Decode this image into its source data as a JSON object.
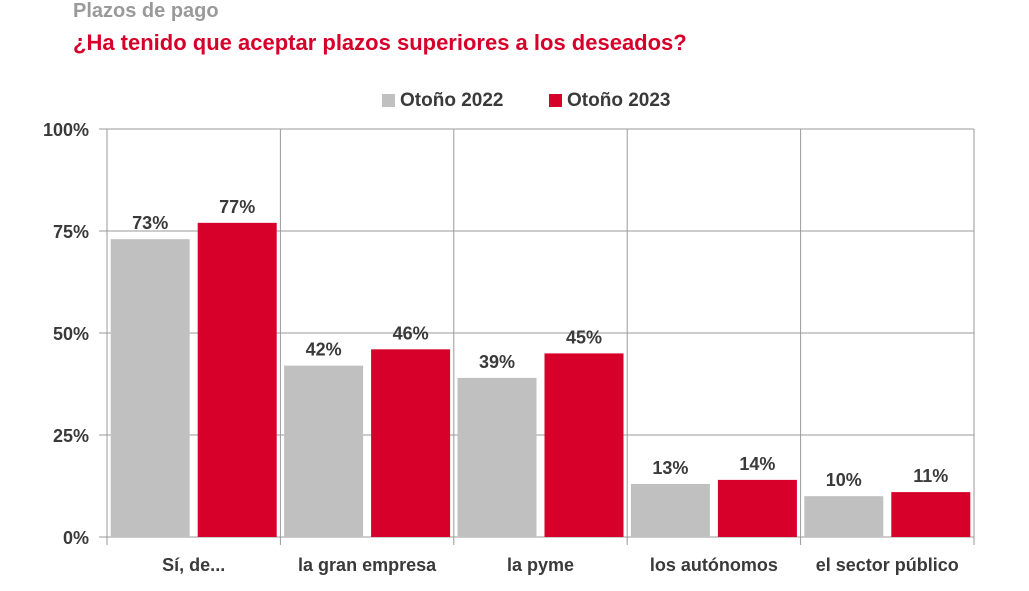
{
  "header": {
    "subtitle": "Plazos de pago",
    "title": "¿Ha tenido que aceptar plazos superiores a los deseados?"
  },
  "chart_data": {
    "type": "bar",
    "categories": [
      "Sí, de...",
      "la gran empresa",
      "la pyme",
      "los autónomos",
      "el sector público"
    ],
    "series": [
      {
        "name": "Otoño 2022",
        "color": "#c0c0c0",
        "values": [
          73,
          42,
          39,
          13,
          10
        ],
        "labels": [
          "73%",
          "42%",
          "39%",
          "13%",
          "10%"
        ]
      },
      {
        "name": "Otoño 2023",
        "color": "#d6002a",
        "values": [
          77,
          46,
          45,
          14,
          11
        ],
        "labels": [
          "77%",
          "46%",
          "45%",
          "14%",
          "11%"
        ]
      }
    ],
    "yticks": [
      "0%",
      "25%",
      "50%",
      "75%",
      "100%"
    ],
    "ytick_values": [
      0,
      25,
      50,
      75,
      100
    ],
    "ylim": [
      0,
      100
    ],
    "grid": true,
    "legend_position": "top-center"
  }
}
